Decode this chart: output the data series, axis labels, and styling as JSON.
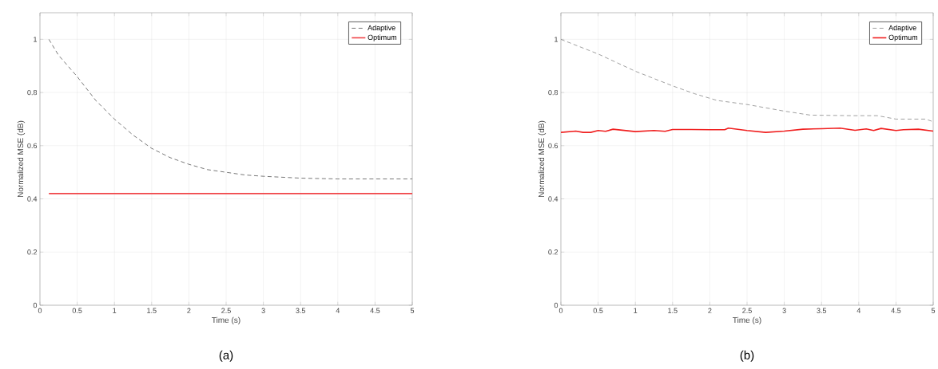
{
  "chart_data": [
    {
      "type": "line",
      "xlabel": "Time (s)",
      "ylabel": "Normalized MSE (dB)",
      "annotations": [
        "(a)"
      ],
      "xlim": [
        0,
        5
      ],
      "ylim": [
        0,
        1.1
      ],
      "xticks": [
        0,
        0.5,
        1,
        1.5,
        2,
        2.5,
        3,
        3.5,
        4,
        4.5,
        5
      ],
      "yticks": [
        0,
        0.2,
        0.4,
        0.6,
        0.8,
        1
      ],
      "grid": true,
      "legend": "top right",
      "series": [
        {
          "name": "Adaptive",
          "color": "#555555",
          "line_style": "dashed",
          "x": [
            0.12,
            0.25,
            0.5,
            0.75,
            1,
            1.25,
            1.5,
            1.75,
            2,
            2.25,
            2.5,
            2.75,
            3,
            3.5,
            4,
            4.5,
            5
          ],
          "values": [
            1.0,
            0.94,
            0.86,
            0.77,
            0.7,
            0.64,
            0.59,
            0.555,
            0.53,
            0.51,
            0.5,
            0.49,
            0.485,
            0.478,
            0.475,
            0.475,
            0.475
          ]
        },
        {
          "name": "Optimum",
          "color": "#f04448",
          "line_style": "solid",
          "x": [
            0.12,
            5
          ],
          "values": [
            0.42,
            0.42
          ]
        }
      ]
    },
    {
      "type": "line",
      "xlabel": "Time (s)",
      "ylabel": "Normalized MSE (dB)",
      "annotations": [
        "(b)"
      ],
      "xlim": [
        0,
        5
      ],
      "ylim": [
        0,
        1.1
      ],
      "xticks": [
        0,
        0.5,
        1,
        1.5,
        2,
        2.5,
        3,
        3.5,
        4,
        4.5,
        5
      ],
      "yticks": [
        0,
        0.2,
        0.4,
        0.6,
        0.8,
        1
      ],
      "grid": true,
      "legend": "top right",
      "series": [
        {
          "name": "Adaptive",
          "color": "#888888",
          "line_style": "dashed",
          "x": [
            0,
            0.5,
            1,
            1.5,
            1.8,
            2.1,
            2.5,
            3,
            3.35,
            3.9,
            4.25,
            4.5,
            4.9,
            5
          ],
          "values": [
            1.0,
            0.945,
            0.88,
            0.825,
            0.795,
            0.77,
            0.755,
            0.73,
            0.715,
            0.713,
            0.713,
            0.7,
            0.7,
            0.69
          ]
        },
        {
          "name": "Optimum",
          "color": "#f02020",
          "line_style": "solid",
          "x": [
            0,
            0.2,
            0.3,
            0.4,
            0.5,
            0.6,
            0.7,
            0.9,
            1,
            1.25,
            1.4,
            1.5,
            1.75,
            2,
            2.2,
            2.25,
            2.5,
            2.75,
            3,
            3.25,
            3.5,
            3.75,
            3.95,
            4.1,
            4.2,
            4.3,
            4.5,
            4.6,
            4.8,
            5
          ],
          "values": [
            0.65,
            0.655,
            0.65,
            0.65,
            0.657,
            0.654,
            0.662,
            0.656,
            0.653,
            0.657,
            0.654,
            0.661,
            0.661,
            0.66,
            0.66,
            0.666,
            0.657,
            0.65,
            0.655,
            0.662,
            0.664,
            0.666,
            0.658,
            0.663,
            0.657,
            0.665,
            0.657,
            0.66,
            0.662,
            0.655
          ]
        }
      ]
    }
  ]
}
